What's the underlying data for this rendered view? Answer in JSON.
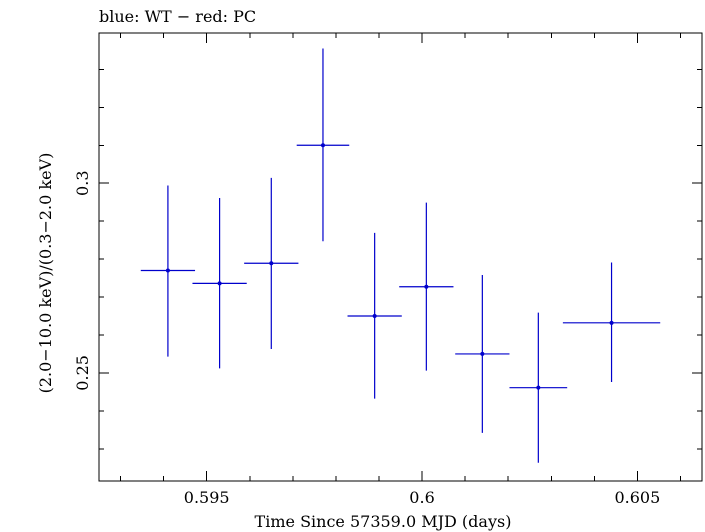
{
  "chart_data": {
    "type": "scatter",
    "title": "blue: WT − red: PC",
    "xlabel": "Time Since 57359.0 MJD (days)",
    "ylabel": "(2.0−10.0 keV)/(0.3−2.0 keV)",
    "xlim": [
      0.5925,
      0.6065
    ],
    "ylim": [
      0.2215,
      0.3396
    ],
    "x_major_ticks": [
      0.595,
      0.6,
      0.605
    ],
    "x_tick_labels": [
      "0.595",
      "0.6",
      "0.605"
    ],
    "y_major_ticks": [
      0.25,
      0.3
    ],
    "y_tick_labels": [
      "0.25",
      "0.3"
    ],
    "grid": false,
    "series": [
      {
        "color": "#0000cc",
        "points": [
          {
            "x": 0.5941,
            "xerr": 0.00063,
            "y": 0.277,
            "yerr_low": 0.0227,
            "yerr_high": 0.0224
          },
          {
            "x": 0.5953,
            "xerr": 0.00063,
            "y": 0.2736,
            "yerr_low": 0.0224,
            "yerr_high": 0.0225
          },
          {
            "x": 0.5965,
            "xerr": 0.00063,
            "y": 0.2789,
            "yerr_low": 0.0226,
            "yerr_high": 0.0225
          },
          {
            "x": 0.5977,
            "xerr": 0.00061,
            "y": 0.31,
            "yerr_low": 0.0253,
            "yerr_high": 0.0255
          },
          {
            "x": 0.5989,
            "xerr": 0.00063,
            "y": 0.265,
            "yerr_low": 0.0218,
            "yerr_high": 0.0219
          },
          {
            "x": 0.6001,
            "xerr": 0.00063,
            "y": 0.2727,
            "yerr_low": 0.0221,
            "yerr_high": 0.0222
          },
          {
            "x": 0.6014,
            "xerr": 0.00063,
            "y": 0.255,
            "yerr_low": 0.0208,
            "yerr_high": 0.0208
          },
          {
            "x": 0.6027,
            "xerr": 0.00067,
            "y": 0.2461,
            "yerr_low": 0.0198,
            "yerr_high": 0.0198
          },
          {
            "x": 0.6044,
            "xerr": 0.00113,
            "y": 0.2632,
            "yerr_low": 0.0156,
            "yerr_high": 0.0159
          }
        ]
      }
    ]
  }
}
